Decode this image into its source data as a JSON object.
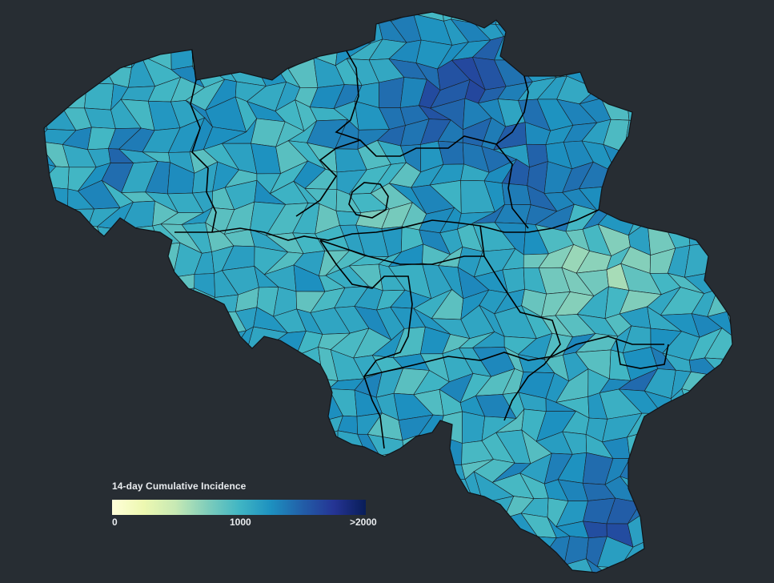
{
  "legend": {
    "title": "14-day Cumulative Incidence",
    "tick_min": "0",
    "tick_mid": "1000",
    "tick_max": ">2000",
    "color_scale": [
      "#ffffd9",
      "#edf8b1",
      "#c7e9b4",
      "#7fcdbb",
      "#41b6c4",
      "#1d91c0",
      "#225ea8",
      "#253494",
      "#081d58"
    ]
  },
  "colors": {
    "background": "#272d33",
    "border": "#1a1f24",
    "province_border": "#000000"
  }
}
